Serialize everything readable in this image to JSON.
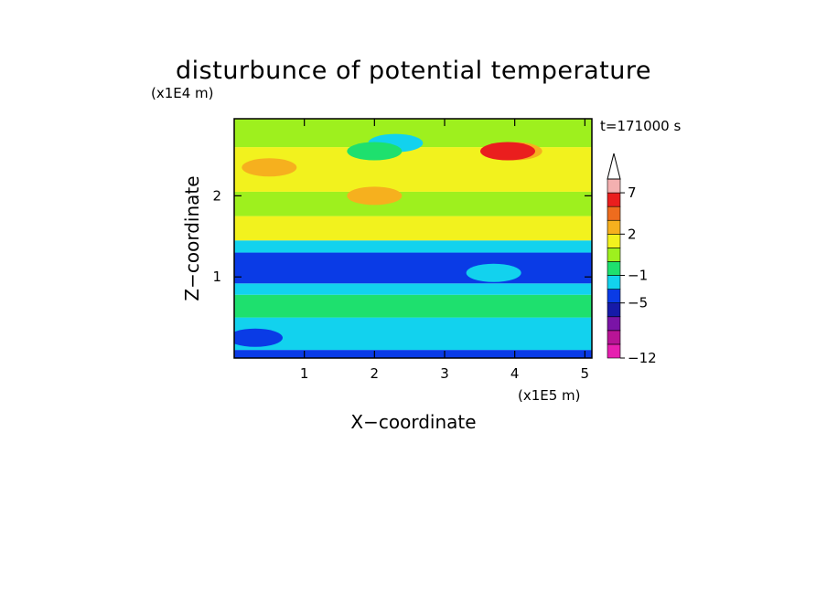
{
  "chart_data": {
    "type": "heatmap",
    "title": "disturbunce of potential temperature",
    "xlabel": "X−coordinate",
    "ylabel": "Z−coordinate",
    "x_unit": "(x1E5 m)",
    "y_unit": "(x1E4 m)",
    "time_label": "t=171000 s",
    "x_range": [
      0,
      5.1
    ],
    "y_range": [
      0,
      2.95
    ],
    "x_ticks": [
      1,
      2,
      3,
      4,
      5
    ],
    "x_tick_labels": [
      "1",
      "2",
      "3",
      "4",
      "5"
    ],
    "y_ticks": [
      1,
      2
    ],
    "y_tick_labels": [
      "1",
      "2"
    ],
    "colorbar": {
      "levels": [
        -12,
        -11,
        -9,
        -7,
        -5,
        -3,
        -1,
        0,
        1,
        2,
        4,
        5,
        7,
        9
      ],
      "colors": [
        "#e61fb0",
        "#b81496",
        "#7a14a6",
        "#161aa8",
        "#0a3be6",
        "#12d2ee",
        "#1ee06e",
        "#9ef01e",
        "#f2f21e",
        "#f6b01e",
        "#ee6c1e",
        "#ea1e1e",
        "#f4b0b0"
      ],
      "extend": "max",
      "tick_labels": [
        {
          "value": 7,
          "label": "7"
        },
        {
          "value": 2,
          "label": "2"
        },
        {
          "value": -1,
          "label": "−1"
        },
        {
          "value": -5,
          "label": "−5"
        },
        {
          "value": -12,
          "label": "−12"
        }
      ]
    },
    "regions": [
      {
        "zmin": 0.0,
        "zmax": 0.1,
        "value": -4
      },
      {
        "zmin": 0.1,
        "zmax": 0.5,
        "value": -2
      },
      {
        "zmin": 0.5,
        "zmax": 0.78,
        "value": -0.5
      },
      {
        "zmin": 0.78,
        "zmax": 0.92,
        "value": -2
      },
      {
        "zmin": 0.92,
        "zmax": 1.3,
        "value": -4
      },
      {
        "zmin": 1.3,
        "zmax": 1.45,
        "value": -1.5
      },
      {
        "zmin": 1.45,
        "zmax": 1.75,
        "value": 1.5
      },
      {
        "zmin": 1.75,
        "zmax": 2.05,
        "value": 0.5
      },
      {
        "zmin": 2.05,
        "zmax": 2.6,
        "value": 1.5
      },
      {
        "zmin": 2.6,
        "zmax": 2.95,
        "value": 0.5
      }
    ],
    "features": [
      {
        "x": 4.0,
        "z": 2.55,
        "value": 3
      },
      {
        "x": 3.9,
        "z": 2.55,
        "value": 5
      },
      {
        "x": 2.0,
        "z": 2.0,
        "value": 3
      },
      {
        "x": 0.5,
        "z": 2.35,
        "value": 3
      },
      {
        "x": 2.3,
        "z": 2.65,
        "value": -2
      },
      {
        "x": 2.0,
        "z": 2.55,
        "value": -0.5
      },
      {
        "x": 3.7,
        "z": 1.05,
        "value": -2
      },
      {
        "x": 0.3,
        "z": 0.25,
        "value": -4
      }
    ]
  }
}
